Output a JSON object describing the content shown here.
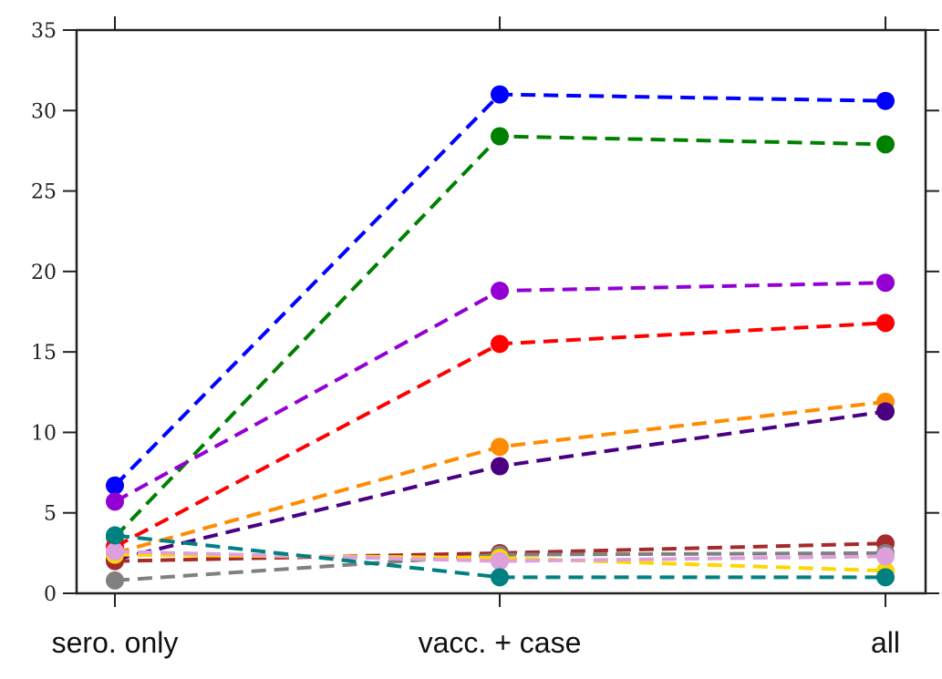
{
  "chart_data": {
    "type": "line",
    "categories": [
      "sero. only",
      "vacc. + case",
      "all"
    ],
    "ylim": [
      0,
      35
    ],
    "yticks": [
      0,
      5,
      10,
      15,
      20,
      25,
      30,
      35
    ],
    "grid": false,
    "series": [
      {
        "color": "#0000ff",
        "values": [
          6.7,
          31.0,
          30.6
        ]
      },
      {
        "color": "#008000",
        "values": [
          3.5,
          28.4,
          27.9
        ]
      },
      {
        "color": "#9400d3",
        "values": [
          5.7,
          18.8,
          19.3
        ]
      },
      {
        "color": "#ff0000",
        "values": [
          2.9,
          15.5,
          16.8
        ]
      },
      {
        "color": "#ff8c00",
        "values": [
          2.5,
          9.1,
          11.9
        ]
      },
      {
        "color": "#4b0082",
        "values": [
          2.1,
          7.9,
          11.3
        ]
      },
      {
        "color": "#a52a2a",
        "values": [
          2.0,
          2.5,
          3.1
        ]
      },
      {
        "color": "#808080",
        "values": [
          0.8,
          2.4,
          2.5
        ]
      },
      {
        "color": "#ffd700",
        "values": [
          2.4,
          2.2,
          1.4
        ]
      },
      {
        "color": "#dda0dd",
        "values": [
          2.6,
          2.0,
          2.3
        ]
      },
      {
        "color": "#008080",
        "values": [
          3.6,
          1.0,
          1.0
        ]
      }
    ]
  }
}
